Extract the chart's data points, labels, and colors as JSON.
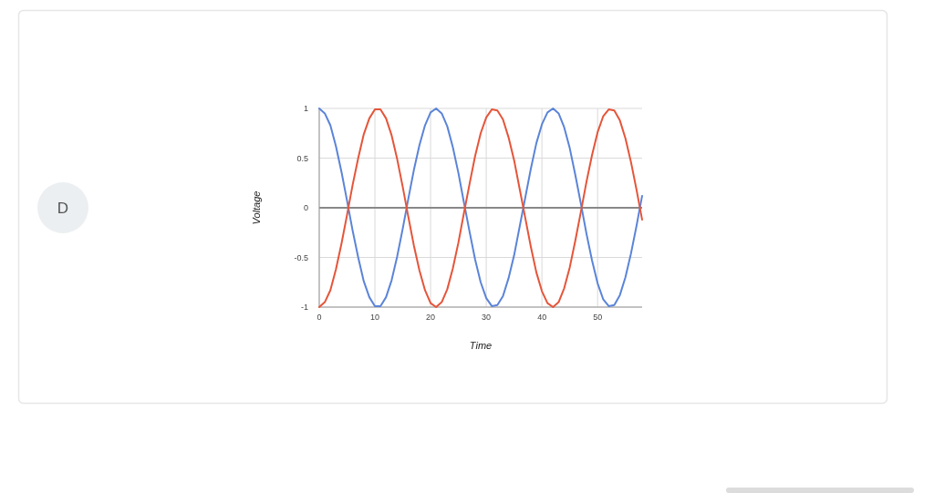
{
  "chart_data": {
    "type": "line",
    "xlabel": "Time",
    "ylabel": "Voltage",
    "annotations": [
      "D"
    ],
    "x": [
      0,
      1,
      2,
      3,
      4,
      5,
      6,
      7,
      8,
      9,
      10,
      11,
      12,
      13,
      14,
      15,
      16,
      17,
      18,
      19,
      20,
      21,
      22,
      23,
      24,
      25,
      26,
      27,
      28,
      29,
      30,
      31,
      32,
      33,
      34,
      35,
      36,
      37,
      38,
      39,
      40,
      41,
      42,
      43,
      44,
      45,
      46,
      47,
      48,
      49,
      50,
      51,
      52,
      53,
      54,
      55,
      56,
      57,
      58
    ],
    "series": [
      {
        "color": "#5b84d8",
        "values": [
          1,
          0.95,
          0.83,
          0.62,
          0.36,
          0.07,
          -0.23,
          -0.5,
          -0.74,
          -0.9,
          -0.99,
          -0.99,
          -0.9,
          -0.73,
          -0.49,
          -0.21,
          0.09,
          0.38,
          0.63,
          0.83,
          0.96,
          1,
          0.95,
          0.82,
          0.61,
          0.35,
          0.05,
          -0.24,
          -0.52,
          -0.75,
          -0.91,
          -0.99,
          -0.98,
          -0.89,
          -0.71,
          -0.48,
          -0.19,
          0.1,
          0.39,
          0.65,
          0.84,
          0.96,
          1,
          0.95,
          0.81,
          0.6,
          0.33,
          0.04,
          -0.26,
          -0.53,
          -0.76,
          -0.92,
          -0.99,
          -0.98,
          -0.88,
          -0.7,
          -0.46,
          -0.18,
          0.12
        ]
      },
      {
        "color": "#e5553a",
        "values": [
          -1,
          -0.95,
          -0.83,
          -0.62,
          -0.36,
          -0.07,
          0.23,
          0.5,
          0.74,
          0.9,
          0.99,
          0.99,
          0.9,
          0.73,
          0.49,
          0.21,
          -0.09,
          -0.38,
          -0.63,
          -0.83,
          -0.96,
          -1,
          -0.95,
          -0.82,
          -0.61,
          -0.35,
          -0.05,
          0.24,
          0.52,
          0.75,
          0.91,
          0.99,
          0.98,
          0.89,
          0.71,
          0.48,
          0.19,
          -0.1,
          -0.39,
          -0.65,
          -0.84,
          -0.96,
          -1,
          -0.95,
          -0.81,
          -0.6,
          -0.33,
          -0.04,
          0.26,
          0.53,
          0.76,
          0.92,
          0.99,
          0.98,
          0.88,
          0.7,
          0.46,
          0.18,
          -0.12
        ]
      }
    ],
    "xlim": [
      0,
      58
    ],
    "xticks": [
      0,
      10,
      20,
      30,
      40,
      50
    ],
    "ylim": [
      -1,
      1
    ],
    "yticks": [
      -1,
      -0.5,
      0,
      0.5,
      1
    ],
    "grid": true,
    "marker": "none",
    "line_style": "solid"
  }
}
